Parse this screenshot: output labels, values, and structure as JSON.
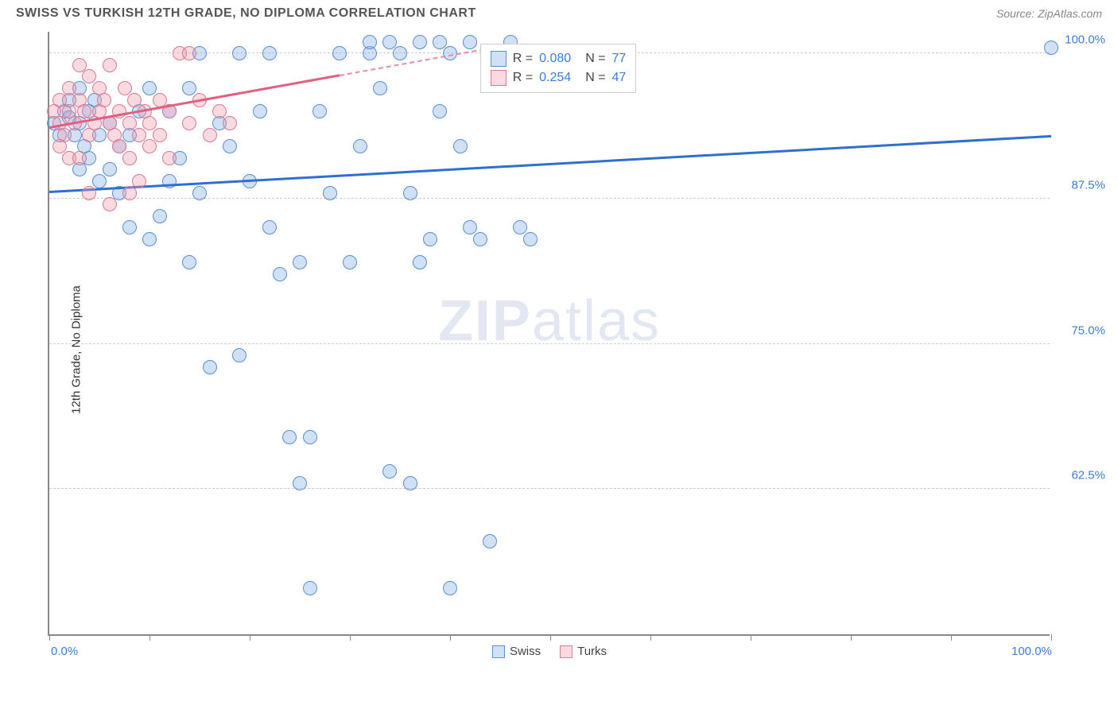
{
  "header": {
    "title": "SWISS VS TURKISH 12TH GRADE, NO DIPLOMA CORRELATION CHART",
    "source": "Source: ZipAtlas.com"
  },
  "watermark": {
    "part1": "ZIP",
    "part2": "atlas"
  },
  "chart": {
    "type": "scatter",
    "background_color": "#ffffff",
    "axis_color": "#888888",
    "grid_color": "#cccccc",
    "ylabel": "12th Grade, No Diploma",
    "xlim": [
      0,
      100
    ],
    "ylim": [
      50,
      102
    ],
    "x_tick_positions": [
      0,
      10,
      20,
      30,
      40,
      50,
      60,
      70,
      80,
      90,
      100
    ],
    "x_tick_labels": {
      "0": "0.0%",
      "100": "100.0%"
    },
    "y_grid_lines": [
      62.5,
      75.0,
      87.5,
      100.0
    ],
    "y_tick_labels": [
      "62.5%",
      "75.0%",
      "87.5%",
      "100.0%"
    ],
    "marker_radius": 9,
    "marker_stroke_width": 1.5,
    "series": [
      {
        "name": "Swiss",
        "fill": "rgba(120,170,230,0.35)",
        "stroke": "#5a8fd0",
        "r_value": "0.080",
        "n_value": "77",
        "trend": {
          "x1": 0,
          "y1": 88.0,
          "x2": 100,
          "y2": 92.8,
          "color": "#2e6fd0",
          "width": 3,
          "dash": false
        },
        "points": [
          [
            0.5,
            94
          ],
          [
            1,
            93
          ],
          [
            1.5,
            95
          ],
          [
            2,
            94.5
          ],
          [
            2,
            96
          ],
          [
            2.5,
            93
          ],
          [
            3,
            94
          ],
          [
            3,
            97
          ],
          [
            3.5,
            92
          ],
          [
            4,
            95
          ],
          [
            4,
            91
          ],
          [
            4.5,
            96
          ],
          [
            5,
            93
          ],
          [
            5,
            89
          ],
          [
            6,
            90
          ],
          [
            6,
            94
          ],
          [
            7,
            92
          ],
          [
            7,
            88
          ],
          [
            8,
            85
          ],
          [
            8,
            93
          ],
          [
            9,
            95
          ],
          [
            10,
            84
          ],
          [
            10,
            97
          ],
          [
            11,
            86
          ],
          [
            12,
            89
          ],
          [
            12,
            95
          ],
          [
            13,
            91
          ],
          [
            14,
            82
          ],
          [
            14,
            97
          ],
          [
            15,
            88
          ],
          [
            15,
            100
          ],
          [
            16,
            73
          ],
          [
            17,
            94
          ],
          [
            18,
            92
          ],
          [
            19,
            74
          ],
          [
            19,
            100
          ],
          [
            20,
            89
          ],
          [
            21,
            95
          ],
          [
            22,
            85
          ],
          [
            22,
            100
          ],
          [
            23,
            81
          ],
          [
            24,
            67
          ],
          [
            25,
            82
          ],
          [
            25,
            63
          ],
          [
            26,
            67
          ],
          [
            26,
            54
          ],
          [
            27,
            95
          ],
          [
            28,
            88
          ],
          [
            29,
            100
          ],
          [
            30,
            82
          ],
          [
            31,
            92
          ],
          [
            32,
            100
          ],
          [
            33,
            97
          ],
          [
            34,
            64
          ],
          [
            35,
            100
          ],
          [
            36,
            88
          ],
          [
            36,
            63
          ],
          [
            37,
            82
          ],
          [
            38,
            84
          ],
          [
            39,
            95
          ],
          [
            40,
            100
          ],
          [
            40,
            54
          ],
          [
            41,
            92
          ],
          [
            42,
            85
          ],
          [
            43,
            84
          ],
          [
            44,
            58
          ],
          [
            45,
            100
          ],
          [
            46,
            101
          ],
          [
            47,
            85
          ],
          [
            48,
            84
          ],
          [
            37,
            101
          ],
          [
            39,
            101
          ],
          [
            42,
            101
          ],
          [
            34,
            101
          ],
          [
            32,
            101
          ],
          [
            100,
            100.5
          ],
          [
            3,
            90
          ]
        ]
      },
      {
        "name": "Turks",
        "fill": "rgba(240,150,170,0.35)",
        "stroke": "#d77a95",
        "r_value": "0.254",
        "n_value": "47",
        "trend": {
          "x1": 0,
          "y1": 93.5,
          "x2": 29,
          "y2": 98.0,
          "color": "#e06080",
          "width": 3,
          "dash": false
        },
        "trend_ext": {
          "x1": 29,
          "y1": 98.0,
          "x2": 45,
          "y2": 100.5,
          "color": "#e88ca5",
          "width": 2,
          "dash": true
        },
        "points": [
          [
            0.5,
            95
          ],
          [
            1,
            94
          ],
          [
            1,
            96
          ],
          [
            1.5,
            93
          ],
          [
            2,
            97
          ],
          [
            2,
            95
          ],
          [
            2.5,
            94
          ],
          [
            3,
            99
          ],
          [
            3,
            96
          ],
          [
            3.5,
            95
          ],
          [
            4,
            93
          ],
          [
            4,
            98
          ],
          [
            4.5,
            94
          ],
          [
            5,
            97
          ],
          [
            5,
            95
          ],
          [
            5.5,
            96
          ],
          [
            6,
            94
          ],
          [
            6,
            99
          ],
          [
            6.5,
            93
          ],
          [
            7,
            95
          ],
          [
            7,
            92
          ],
          [
            7.5,
            97
          ],
          [
            8,
            94
          ],
          [
            8,
            91
          ],
          [
            8.5,
            96
          ],
          [
            9,
            93
          ],
          [
            9,
            89
          ],
          [
            9.5,
            95
          ],
          [
            10,
            92
          ],
          [
            10,
            94
          ],
          [
            11,
            96
          ],
          [
            11,
            93
          ],
          [
            12,
            95
          ],
          [
            12,
            91
          ],
          [
            13,
            100
          ],
          [
            14,
            94
          ],
          [
            14,
            100
          ],
          [
            15,
            96
          ],
          [
            16,
            93
          ],
          [
            17,
            95
          ],
          [
            18,
            94
          ],
          [
            4,
            88
          ],
          [
            6,
            87
          ],
          [
            8,
            88
          ],
          [
            2,
            91
          ],
          [
            1,
            92
          ],
          [
            3,
            91
          ]
        ]
      }
    ],
    "stats_legend": {
      "bg": "#ffffff",
      "border": "#cccccc",
      "r_label": "R =",
      "n_label": "N ="
    },
    "bottom_legend": {
      "swiss_label": "Swiss",
      "turks_label": "Turks"
    }
  }
}
